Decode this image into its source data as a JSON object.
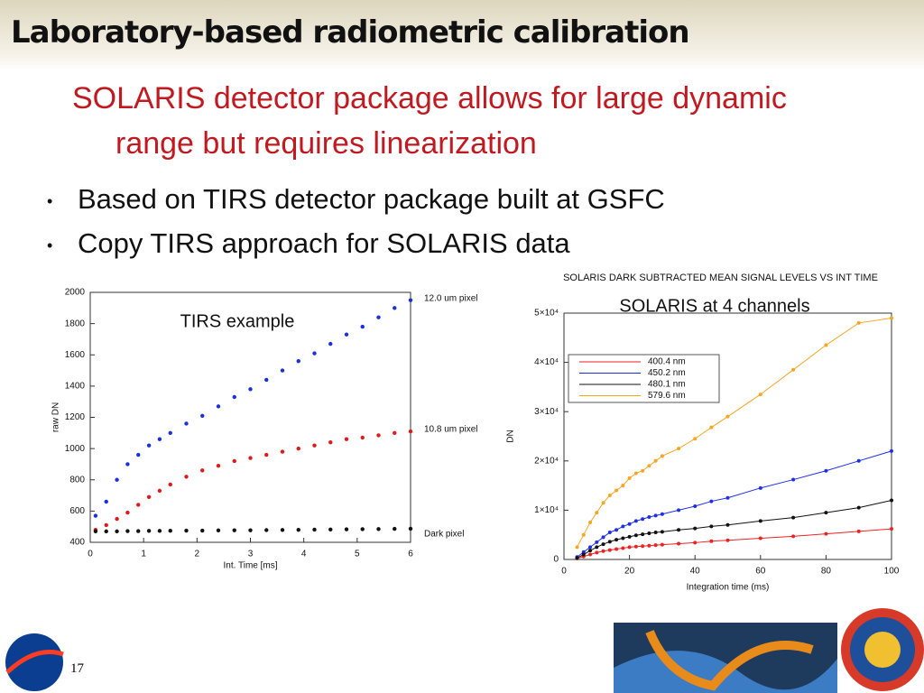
{
  "slide": {
    "title": "Laboratory-based radiometric calibration",
    "subtitle": "SOLARIS detector package allows for large dynamic range but requires linearization",
    "bullets": [
      "Based on TIRS detector package built at GSFC",
      "Copy TIRS approach for SOLARIS data"
    ],
    "page_number": "17"
  },
  "chart_data": [
    {
      "type": "scatter",
      "annotation": "TIRS example",
      "xlabel": "Int. Time [ms]",
      "ylabel": "raw DN",
      "x": [
        0.1,
        0.3,
        0.5,
        0.7,
        0.9,
        1.1,
        1.3,
        1.5,
        1.8,
        2.1,
        2.4,
        2.7,
        3.0,
        3.3,
        3.6,
        3.9,
        4.2,
        4.5,
        4.8,
        5.1,
        5.4,
        5.7,
        6.0
      ],
      "series": [
        {
          "name": "12.0 um pixel",
          "color": "#1a2fe0",
          "values": [
            570,
            660,
            800,
            900,
            960,
            1020,
            1060,
            1100,
            1160,
            1210,
            1270,
            1330,
            1380,
            1440,
            1500,
            1560,
            1610,
            1670,
            1730,
            1780,
            1840,
            1900,
            1950
          ]
        },
        {
          "name": "10.8 um pixel",
          "color": "#e01a1a",
          "values": [
            480,
            510,
            550,
            590,
            640,
            690,
            730,
            770,
            820,
            860,
            890,
            920,
            940,
            960,
            980,
            1000,
            1020,
            1040,
            1060,
            1070,
            1085,
            1100,
            1110
          ]
        },
        {
          "name": "Dark pixel",
          "color": "#111111",
          "values": [
            470,
            470,
            470,
            472,
            472,
            473,
            473,
            474,
            475,
            475,
            476,
            477,
            477,
            478,
            479,
            480,
            481,
            482,
            483,
            484,
            485,
            486,
            487
          ]
        }
      ],
      "xlim": [
        0,
        6
      ],
      "xticks": [
        0,
        1,
        2,
        3,
        4,
        5,
        6
      ],
      "ylim": [
        400,
        2000
      ],
      "yticks": [
        400,
        600,
        800,
        1000,
        1200,
        1400,
        1600,
        1800,
        2000
      ]
    },
    {
      "type": "line",
      "title": "SOLARIS DARK SUBTRACTED MEAN SIGNAL LEVELS VS INT TIME",
      "annotation": "SOLARIS at 4 channels",
      "xlabel": "Integration time (ms)",
      "ylabel": "DN",
      "legend": "upper left",
      "x": [
        4,
        6,
        8,
        10,
        12,
        14,
        16,
        18,
        20,
        22,
        24,
        26,
        28,
        30,
        35,
        40,
        45,
        50,
        60,
        70,
        80,
        90,
        100
      ],
      "series": [
        {
          "name": "400.4 nm",
          "color": "#ee2222",
          "values": [
            200,
            600,
            1000,
            1400,
            1700,
            1900,
            2100,
            2300,
            2500,
            2600,
            2700,
            2800,
            2900,
            3000,
            3200,
            3400,
            3700,
            3900,
            4300,
            4700,
            5200,
            5700,
            6200
          ]
        },
        {
          "name": "450.2 nm",
          "color": "#1f2fe8",
          "values": [
            500,
            1500,
            2500,
            3500,
            4500,
            5500,
            6000,
            6700,
            7200,
            7800,
            8200,
            8600,
            8900,
            9200,
            10000,
            10800,
            11800,
            12500,
            14500,
            16200,
            18000,
            20000,
            22000
          ]
        },
        {
          "name": "480.1 nm",
          "color": "#111111",
          "values": [
            300,
            1000,
            1800,
            2500,
            3100,
            3600,
            4000,
            4300,
            4600,
            4900,
            5100,
            5300,
            5500,
            5600,
            6000,
            6300,
            6700,
            7000,
            7800,
            8500,
            9500,
            10500,
            12000
          ]
        },
        {
          "name": "579.6 nm",
          "color": "#f5a623",
          "values": [
            2500,
            5000,
            7500,
            9500,
            11500,
            13000,
            14000,
            15000,
            16500,
            17500,
            18000,
            19000,
            20000,
            21000,
            22500,
            24500,
            26800,
            29000,
            33500,
            38500,
            43500,
            48000,
            49000
          ]
        }
      ],
      "xlim": [
        0,
        100
      ],
      "xticks": [
        0,
        20,
        40,
        60,
        80,
        100
      ],
      "ylim": [
        0,
        50000
      ],
      "yticks": [
        0,
        {
          "value": 10000,
          "label": "1×10⁴"
        },
        {
          "value": 20000,
          "label": "2×10⁴"
        },
        {
          "value": 30000,
          "label": "3×10⁴"
        },
        {
          "value": 40000,
          "label": "4×10⁴"
        },
        {
          "value": 50000,
          "label": "5×10⁴"
        }
      ]
    }
  ]
}
